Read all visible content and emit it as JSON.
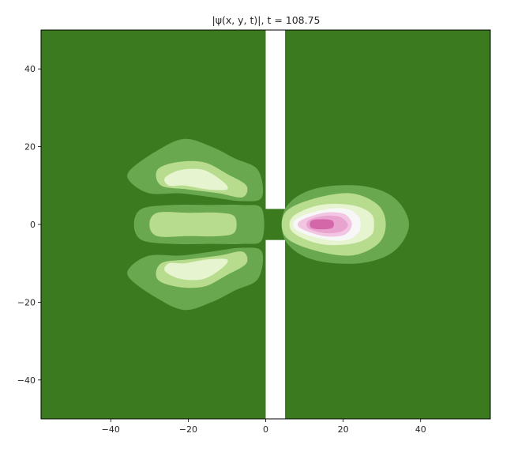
{
  "chart_data": {
    "type": "heatmap",
    "title": "|ψ(x, y, t)|, t = 108.75",
    "xlabel": "",
    "ylabel": "",
    "xlim": [
      -58,
      58
    ],
    "ylim": [
      -50,
      50
    ],
    "xticks": [
      -40,
      -20,
      0,
      20,
      40
    ],
    "yticks": [
      -40,
      -20,
      0,
      20,
      40
    ],
    "xtick_labels": [
      "−40",
      "−20",
      "0",
      "20",
      "40"
    ],
    "ytick_labels": [
      "−40",
      "−20",
      "0",
      "20",
      "40"
    ],
    "grid": false,
    "legend": "none",
    "colormap": "PiYG (reversed)",
    "background_color": "#3b7a1e",
    "barrier": {
      "x_range": [
        0,
        5
      ],
      "slit_y_range": [
        -4,
        4
      ],
      "color": "#ffffff"
    },
    "contour_regions": [
      {
        "name": "left-lobe-top",
        "level": 1,
        "color": "#6aa84f",
        "points": [
          [
            -35,
            14
          ],
          [
            -28,
            19
          ],
          [
            -21,
            22
          ],
          [
            -14,
            20
          ],
          [
            -8,
            17
          ],
          [
            -2,
            14
          ],
          [
            -1,
            7
          ],
          [
            -6,
            6
          ],
          [
            -14,
            7
          ],
          [
            -22,
            8
          ],
          [
            -30,
            8
          ],
          [
            -35,
            11
          ]
        ]
      },
      {
        "name": "left-lobe-top",
        "level": 2,
        "color": "#b7dc8e",
        "points": [
          [
            -28,
            14
          ],
          [
            -23,
            16
          ],
          [
            -16,
            16
          ],
          [
            -10,
            13
          ],
          [
            -5,
            10
          ],
          [
            -6,
            7
          ],
          [
            -12,
            8
          ],
          [
            -20,
            9
          ],
          [
            -27,
            10
          ]
        ]
      },
      {
        "name": "left-lobe-top",
        "level": 3,
        "color": "#e6f4cf",
        "points": [
          [
            -26,
            12
          ],
          [
            -22,
            14
          ],
          [
            -16,
            14
          ],
          [
            -11,
            11
          ],
          [
            -10,
            9
          ],
          [
            -15,
            9
          ],
          [
            -21,
            10
          ],
          [
            -25,
            10
          ]
        ]
      },
      {
        "name": "left-lobe-bottom",
        "level": 1,
        "color": "#6aa84f",
        "points": [
          [
            -35,
            -14
          ],
          [
            -28,
            -19
          ],
          [
            -21,
            -22
          ],
          [
            -14,
            -20
          ],
          [
            -8,
            -17
          ],
          [
            -2,
            -14
          ],
          [
            -1,
            -7
          ],
          [
            -6,
            -6
          ],
          [
            -14,
            -7
          ],
          [
            -22,
            -8
          ],
          [
            -30,
            -8
          ],
          [
            -35,
            -11
          ]
        ]
      },
      {
        "name": "left-lobe-bottom",
        "level": 2,
        "color": "#b7dc8e",
        "points": [
          [
            -28,
            -14
          ],
          [
            -23,
            -16
          ],
          [
            -16,
            -16
          ],
          [
            -10,
            -13
          ],
          [
            -5,
            -10
          ],
          [
            -6,
            -7
          ],
          [
            -12,
            -8
          ],
          [
            -20,
            -9
          ],
          [
            -27,
            -10
          ]
        ]
      },
      {
        "name": "left-lobe-bottom",
        "level": 3,
        "color": "#e6f4cf",
        "points": [
          [
            -26,
            -12
          ],
          [
            -22,
            -14
          ],
          [
            -16,
            -14
          ],
          [
            -11,
            -11
          ],
          [
            -10,
            -9
          ],
          [
            -15,
            -9
          ],
          [
            -21,
            -10
          ],
          [
            -25,
            -10
          ]
        ]
      },
      {
        "name": "left-center-band",
        "level": 1,
        "color": "#6aa84f",
        "points": [
          [
            -34,
            0
          ],
          [
            -32,
            4
          ],
          [
            -24,
            5
          ],
          [
            -14,
            5
          ],
          [
            -6,
            5
          ],
          [
            -1,
            4
          ],
          [
            -1,
            -4
          ],
          [
            -6,
            -5
          ],
          [
            -14,
            -5
          ],
          [
            -24,
            -5
          ],
          [
            -32,
            -4
          ]
        ]
      },
      {
        "name": "left-center-band",
        "level": 2,
        "color": "#b7dc8e",
        "points": [
          [
            -30,
            0
          ],
          [
            -28,
            3
          ],
          [
            -20,
            3
          ],
          [
            -12,
            3
          ],
          [
            -8,
            2
          ],
          [
            -8,
            -2
          ],
          [
            -12,
            -3
          ],
          [
            -20,
            -3
          ],
          [
            -28,
            -3
          ]
        ]
      },
      {
        "name": "right-lobe",
        "level": 1,
        "color": "#6aa84f",
        "points": [
          [
            5,
            4
          ],
          [
            12,
            9
          ],
          [
            24,
            10
          ],
          [
            33,
            7
          ],
          [
            37,
            0
          ],
          [
            33,
            -7
          ],
          [
            24,
            -10
          ],
          [
            12,
            -9
          ],
          [
            5,
            -4
          ]
        ]
      },
      {
        "name": "right-lobe",
        "level": 2,
        "color": "#b7dc8e",
        "points": [
          [
            5,
            3
          ],
          [
            12,
            6.5
          ],
          [
            22,
            8
          ],
          [
            29,
            5
          ],
          [
            31,
            0
          ],
          [
            29,
            -5
          ],
          [
            22,
            -8
          ],
          [
            12,
            -6.5
          ],
          [
            5,
            -3
          ]
        ]
      },
      {
        "name": "right-lobe",
        "level": 3,
        "color": "#e6f4cf",
        "points": [
          [
            7,
            2
          ],
          [
            14,
            5
          ],
          [
            22,
            5
          ],
          [
            27,
            3
          ],
          [
            28,
            0
          ],
          [
            27,
            -3
          ],
          [
            22,
            -5
          ],
          [
            14,
            -5
          ],
          [
            7,
            -2
          ]
        ]
      },
      {
        "name": "right-lobe",
        "level": 4,
        "color": "#f7f7f7",
        "points": [
          [
            8,
            1.5
          ],
          [
            15,
            3.8
          ],
          [
            21,
            4
          ],
          [
            24,
            2
          ],
          [
            24.5,
            0
          ],
          [
            24,
            -2
          ],
          [
            21,
            -4
          ],
          [
            15,
            -3.8
          ],
          [
            8,
            -1.5
          ]
        ]
      },
      {
        "name": "right-lobe",
        "level": 5,
        "color": "#f2c6e2",
        "points": [
          [
            9,
            1
          ],
          [
            15,
            3
          ],
          [
            20,
            2.8
          ],
          [
            22,
            1
          ],
          [
            22,
            -1
          ],
          [
            20,
            -2.8
          ],
          [
            15,
            -3
          ],
          [
            9,
            -1
          ]
        ]
      },
      {
        "name": "right-lobe",
        "level": 6,
        "color": "#e9a3cf",
        "points": [
          [
            11,
            1
          ],
          [
            15,
            2.2
          ],
          [
            19,
            2
          ],
          [
            21,
            0.5
          ],
          [
            21,
            -0.8
          ],
          [
            19,
            -2
          ],
          [
            15,
            -2.2
          ],
          [
            11,
            -1
          ]
        ]
      },
      {
        "name": "right-lobe-peak",
        "level": 7,
        "color": "#d467a7",
        "points": [
          [
            12,
            1.1
          ],
          [
            17,
            1.1
          ],
          [
            17,
            -1
          ],
          [
            12,
            -1
          ]
        ]
      }
    ]
  }
}
